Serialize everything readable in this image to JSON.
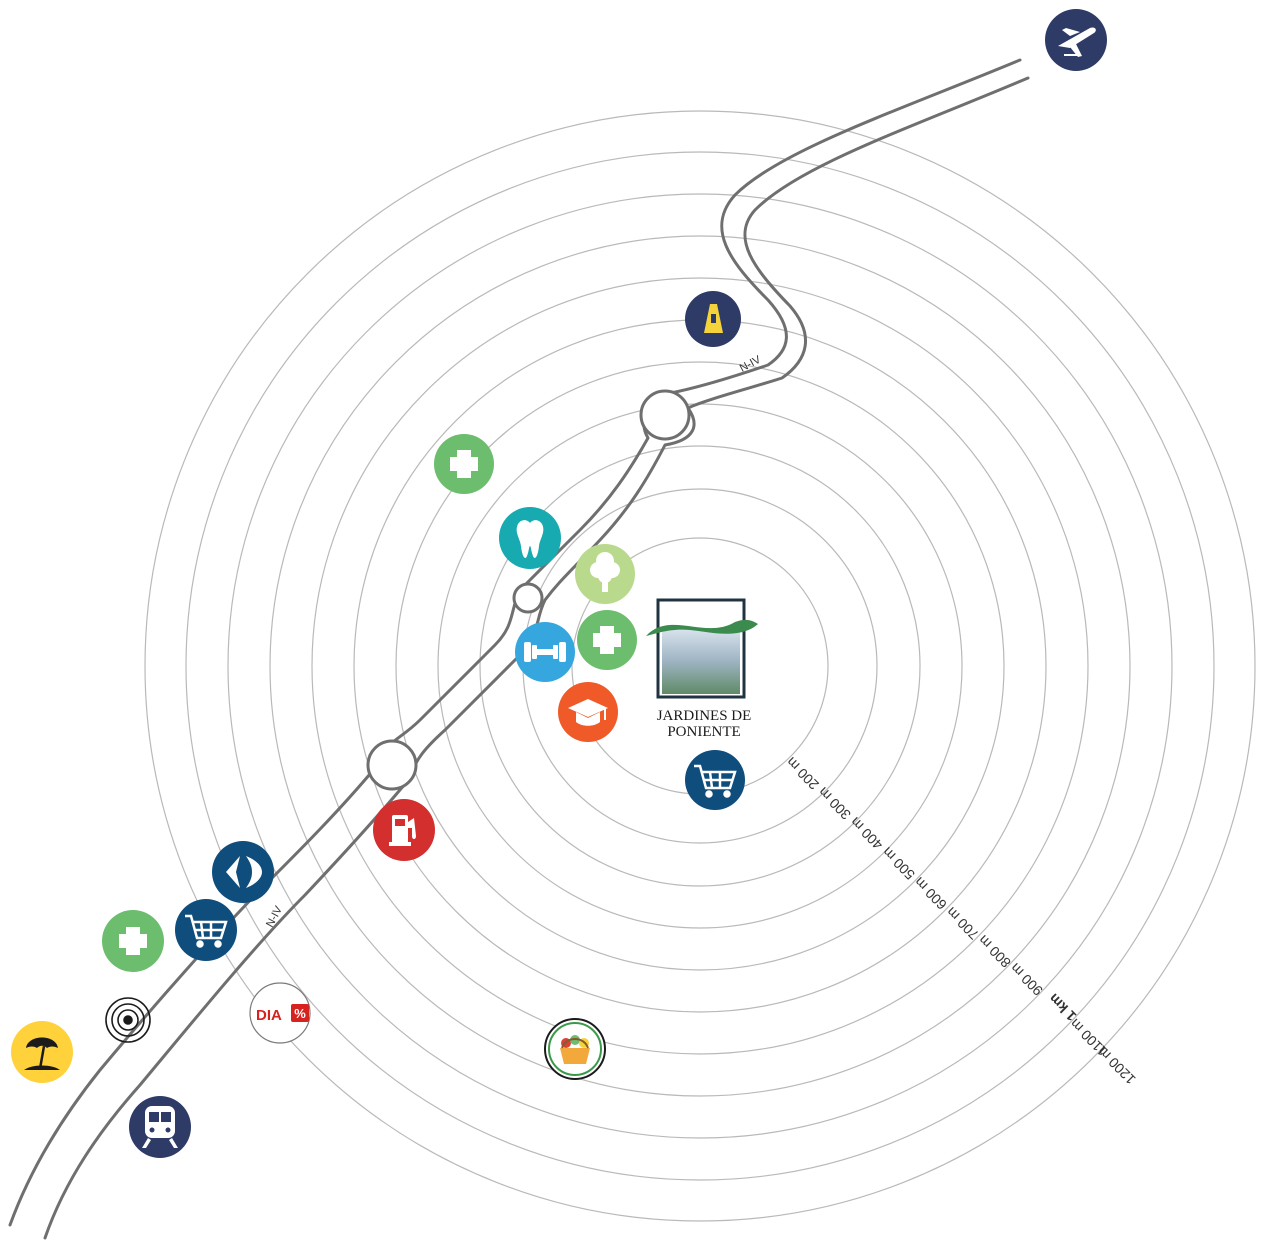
{
  "map": {
    "road_name": "N-IV",
    "ring_labels": [
      "200 m",
      "300 m",
      "400 m",
      "500 m",
      "600 m",
      "700 m",
      "800 m",
      "900 m",
      "1 km",
      "1100 m",
      "1200 m"
    ],
    "brand": {
      "line1": "JARDINES DE",
      "line2": "PONIENTE"
    },
    "store_badge_text": "DIA",
    "colors": {
      "navy": "#2e3b66",
      "green": "#6cbd6e",
      "teal": "#17aab0",
      "light_green": "#b9d98c",
      "sky_blue": "#35a7de",
      "orange": "#ef5a28",
      "red": "#d32f2f",
      "blue": "#0f4d7d",
      "yellow": "#ffd13b",
      "road": "#6f6f6f",
      "ring": "#b9b9b9"
    },
    "points_of_interest": [
      {
        "name": "airport",
        "icon": "airplane-icon"
      },
      {
        "name": "highway-junction",
        "icon": "highway-a-icon"
      },
      {
        "name": "pharmacy-1",
        "icon": "medical-cross-icon"
      },
      {
        "name": "dentist",
        "icon": "tooth-icon"
      },
      {
        "name": "park",
        "icon": "tree-icon"
      },
      {
        "name": "gym",
        "icon": "dumbbell-icon"
      },
      {
        "name": "pharmacy-2",
        "icon": "medical-cross-icon"
      },
      {
        "name": "school",
        "icon": "graduation-cap-icon"
      },
      {
        "name": "supermarket-1",
        "icon": "shopping-cart-icon"
      },
      {
        "name": "gas-station",
        "icon": "fuel-pump-icon"
      },
      {
        "name": "carrefour",
        "icon": "carrefour-icon"
      },
      {
        "name": "pharmacy-3",
        "icon": "medical-cross-icon"
      },
      {
        "name": "supermarket-2",
        "icon": "shopping-cart-icon"
      },
      {
        "name": "target-point",
        "icon": "target-icon"
      },
      {
        "name": "dia-store",
        "icon": "dia-logo-icon"
      },
      {
        "name": "market",
        "icon": "basket-icon"
      },
      {
        "name": "beach",
        "icon": "beach-umbrella-icon"
      },
      {
        "name": "train-station",
        "icon": "train-icon"
      }
    ]
  }
}
